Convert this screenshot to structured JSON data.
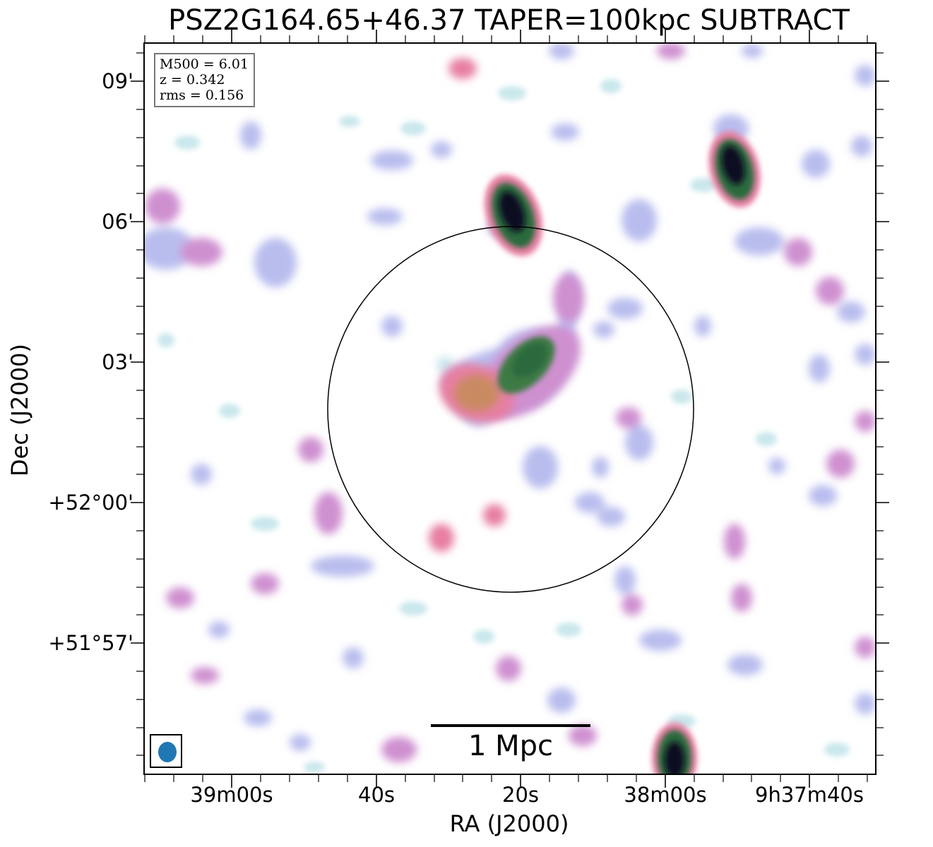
{
  "figure": {
    "title": "PSZ2G164.65+46.37 TAPER=100kpc SUBTRACT",
    "info": {
      "m500": "M500 = 6.01",
      "z": "z = 0.342",
      "rms": "rms = 0.156"
    },
    "scalebar_label": "1 Mpc",
    "xaxis": {
      "title": "RA (J2000)",
      "ticks": [
        "39m00s",
        "40s",
        "20s",
        "38m00s",
        "9h37m40s"
      ]
    },
    "yaxis": {
      "title": "Dec (J2000)",
      "ticks": [
        "09'",
        "06'",
        "03'",
        "+52°00'",
        "+51°57'"
      ]
    },
    "colormap": {
      "faint": "#c9e7ec",
      "low": "#b9bdee",
      "mid": "#cf90d0",
      "pink": "#e77fa3",
      "tan": "#c98a62",
      "green": "#2b6b3c",
      "peak": "#0f0a22"
    },
    "beam_color": "#1f77b4",
    "circle_color": "#000000"
  }
}
